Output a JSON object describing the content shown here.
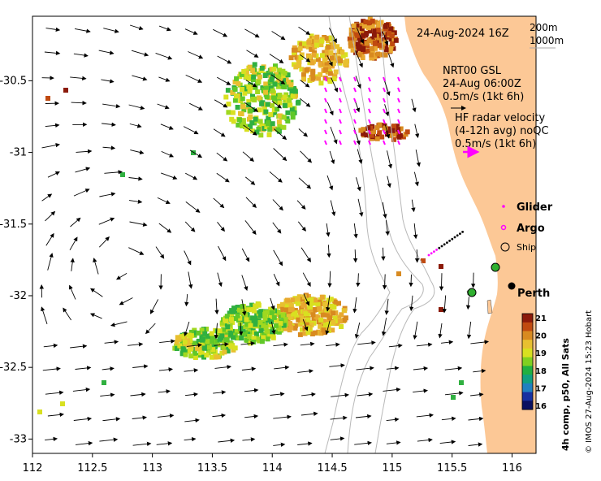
{
  "title": "24-Aug-2024 16Z",
  "depth_legend": [
    "200m",
    "1000m"
  ],
  "gsl": {
    "line1": "NRT00 GSL",
    "line2": "24-Aug 06:00Z",
    "scale": "0.5m/s (1kt 6h)"
  },
  "hf": {
    "line1": "HF radar velocity",
    "line2": "(4-12h avg) noQC",
    "scale": "0.5m/s (1kt 6h)"
  },
  "legend": {
    "glider": "Glider",
    "argo": "Argo",
    "ship": "Ship"
  },
  "city": "Perth",
  "colorbar": {
    "label": "4h comp, p50, All Sats",
    "min": 16,
    "max": 21,
    "ticks": [
      "21",
      "20",
      "19",
      "18",
      "17",
      "16"
    ],
    "colors": [
      "#8b1a0a",
      "#c04a10",
      "#d88a20",
      "#e8c030",
      "#d8e020",
      "#80d020",
      "#20b040",
      "#10a080",
      "#2080c0",
      "#1830a0",
      "#0a1060"
    ]
  },
  "credit": "© IMOS 27-Aug-2024 15:23 Hobart",
  "x_ticks": [
    "112",
    "112.5",
    "113",
    "113.5",
    "114",
    "114.5",
    "115",
    "115.5",
    "116"
  ],
  "y_ticks": [
    "-30.5",
    "-31",
    "-31.5",
    "-32",
    "-32.5",
    "-33"
  ],
  "map_extent": {
    "lon": [
      112.0,
      116.2
    ],
    "lat": [
      -33.1,
      -30.05
    ]
  },
  "colors": {
    "land": "#fcc896",
    "arrow": "#000000",
    "glider": "#ff00ff",
    "ship_marker": "#30b030"
  }
}
